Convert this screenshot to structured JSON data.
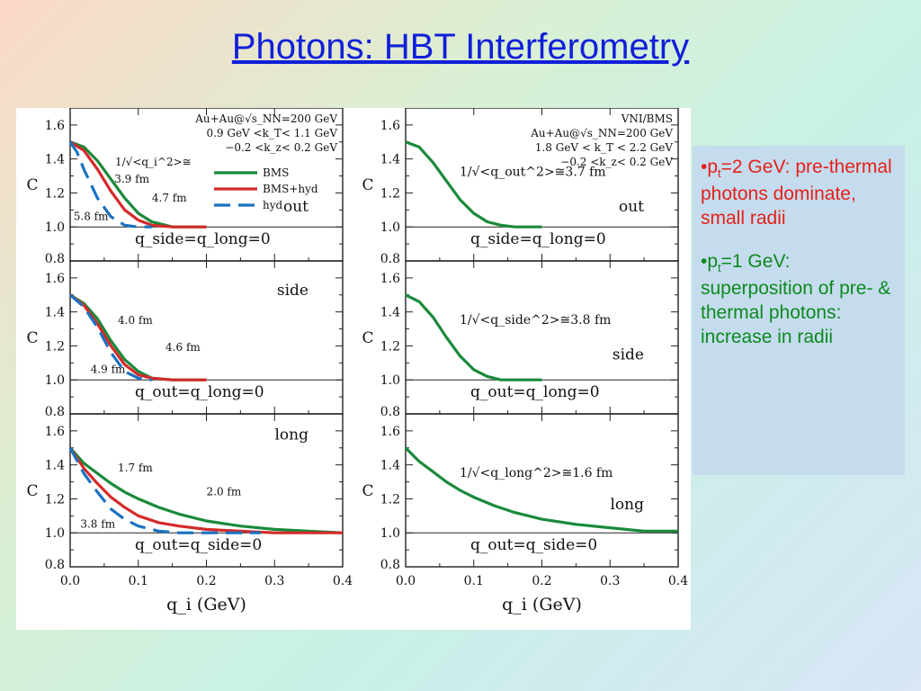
{
  "title": "Photons: HBT Interferometry",
  "notes": [
    {
      "prefix": "•p",
      "sub": "t",
      "text": "=2 GeV: pre-thermal photons dominate, small radii",
      "color": "#e62018"
    },
    {
      "prefix": "•p",
      "sub": "t",
      "text": "=1 GeV: superposition of pre- & thermal photons: increase in radii",
      "color": "#0c8a1e"
    }
  ],
  "colors": {
    "BMS": "#1a8a3a",
    "BMS+hyd": "#d42a2a",
    "hyd": "#1a72c0"
  },
  "chart_data": [
    {
      "type": "line",
      "column": "left",
      "row": "out",
      "xlabel": "q_i (GeV)",
      "ylabel": "C",
      "xlim": [
        0,
        0.4
      ],
      "ylim": [
        0.8,
        1.7
      ],
      "xticks": [
        "0.0",
        "0.1",
        "0.2",
        "0.3",
        "0.4"
      ],
      "yticks": [
        "0.8",
        "1.0",
        "1.2",
        "1.4",
        "1.6"
      ],
      "info": [
        "Au+Au@√s_NN=200 GeV",
        "0.9 GeV <k_T< 1.1 GeV",
        "−0.2 <k_z< 0.2 GeV"
      ],
      "label": "out",
      "condition": "q_side=q_long=0",
      "annotation": "1/√<q_i^2>≅",
      "radii": [
        "3.9 fm",
        "4.7 fm",
        "5.8 fm"
      ],
      "legend": [
        "BMS",
        "BMS+hyd",
        "hyd"
      ],
      "series": [
        {
          "name": "BMS",
          "x": [
            0,
            0.02,
            0.04,
            0.06,
            0.08,
            0.1,
            0.12,
            0.15,
            0.2
          ],
          "y": [
            1.5,
            1.47,
            1.39,
            1.28,
            1.17,
            1.08,
            1.03,
            1.0,
            1.0
          ]
        },
        {
          "name": "BMS+hyd",
          "x": [
            0,
            0.02,
            0.04,
            0.06,
            0.08,
            0.1,
            0.12,
            0.15,
            0.2
          ],
          "y": [
            1.5,
            1.45,
            1.34,
            1.21,
            1.1,
            1.04,
            1.01,
            1.0,
            1.0
          ]
        },
        {
          "name": "hyd",
          "x": [
            0,
            0.01,
            0.02,
            0.04,
            0.06,
            0.08,
            0.1,
            0.12
          ],
          "y": [
            1.5,
            1.44,
            1.34,
            1.17,
            1.06,
            1.01,
            1.0,
            1.0
          ]
        }
      ]
    },
    {
      "type": "line",
      "column": "left",
      "row": "side",
      "xlabel": "q_i (GeV)",
      "ylabel": "C",
      "xlim": [
        0,
        0.4
      ],
      "ylim": [
        0.8,
        1.7
      ],
      "xticks": [
        "0.0",
        "0.1",
        "0.2",
        "0.3",
        "0.4"
      ],
      "yticks": [
        "0.8",
        "1.0",
        "1.2",
        "1.4",
        "1.6"
      ],
      "label": "side",
      "condition": "q_out=q_long=0",
      "radii": [
        "4.0 fm",
        "4.6 fm",
        "4.9 fm"
      ],
      "series": [
        {
          "name": "BMS",
          "x": [
            0,
            0.02,
            0.04,
            0.06,
            0.08,
            0.1,
            0.12,
            0.15,
            0.2
          ],
          "y": [
            1.5,
            1.45,
            1.36,
            1.23,
            1.12,
            1.05,
            1.01,
            1.0,
            1.0
          ]
        },
        {
          "name": "BMS+hyd",
          "x": [
            0,
            0.02,
            0.04,
            0.06,
            0.08,
            0.1,
            0.12,
            0.15,
            0.2
          ],
          "y": [
            1.5,
            1.44,
            1.33,
            1.2,
            1.09,
            1.03,
            1.01,
            1.0,
            1.0
          ]
        },
        {
          "name": "hyd",
          "x": [
            0,
            0.02,
            0.04,
            0.06,
            0.08,
            0.1,
            0.12
          ],
          "y": [
            1.5,
            1.43,
            1.31,
            1.16,
            1.05,
            1.01,
            1.0
          ]
        }
      ]
    },
    {
      "type": "line",
      "column": "left",
      "row": "long",
      "xlabel": "q_i (GeV)",
      "ylabel": "C",
      "xlim": [
        0,
        0.4
      ],
      "ylim": [
        0.8,
        1.7
      ],
      "xticks": [
        "0.0",
        "0.1",
        "0.2",
        "0.3",
        "0.4"
      ],
      "yticks": [
        "0.8",
        "1.0",
        "1.2",
        "1.4",
        "1.6"
      ],
      "label": "long",
      "condition": "q_out=q_side=0",
      "radii": [
        "1.7 fm",
        "2.0 fm",
        "3.8 fm"
      ],
      "series": [
        {
          "name": "BMS",
          "x": [
            0,
            0.02,
            0.04,
            0.06,
            0.08,
            0.1,
            0.13,
            0.16,
            0.2,
            0.25,
            0.3,
            0.35,
            0.4
          ],
          "y": [
            1.5,
            1.41,
            1.35,
            1.29,
            1.24,
            1.2,
            1.15,
            1.11,
            1.07,
            1.04,
            1.02,
            1.01,
            1.0
          ]
        },
        {
          "name": "BMS+hyd",
          "x": [
            0,
            0.02,
            0.04,
            0.06,
            0.08,
            0.1,
            0.13,
            0.16,
            0.2,
            0.25,
            0.3,
            0.4
          ],
          "y": [
            1.5,
            1.38,
            1.29,
            1.21,
            1.15,
            1.1,
            1.06,
            1.04,
            1.02,
            1.01,
            1.0,
            1.0
          ]
        },
        {
          "name": "hyd",
          "x": [
            0,
            0.02,
            0.04,
            0.06,
            0.08,
            0.1,
            0.13,
            0.16,
            0.2,
            0.28
          ],
          "y": [
            1.5,
            1.35,
            1.24,
            1.14,
            1.08,
            1.04,
            1.01,
            1.0,
            1.0,
            1.0
          ]
        }
      ]
    },
    {
      "type": "line",
      "column": "right",
      "row": "out",
      "xlabel": "q_i (GeV)",
      "ylabel": "C",
      "xlim": [
        0,
        0.4
      ],
      "ylim": [
        0.8,
        1.7
      ],
      "xticks": [
        "0.0",
        "0.1",
        "0.2",
        "0.3",
        "0.4"
      ],
      "yticks": [
        "0.8",
        "1.0",
        "1.2",
        "1.4",
        "1.6"
      ],
      "info": [
        "VNI/BMS",
        "Au+Au@√s_NN=200 GeV",
        "1.8 GeV < k_T < 2.2 GeV",
        "−0.2 <k_z< 0.2 GeV"
      ],
      "label": "out",
      "condition": "q_side=q_long=0",
      "annotation": "1/√<q_out^2>≅3.7 fm",
      "series": [
        {
          "name": "BMS",
          "x": [
            0,
            0.02,
            0.04,
            0.06,
            0.08,
            0.1,
            0.12,
            0.14,
            0.16,
            0.2
          ],
          "y": [
            1.5,
            1.47,
            1.38,
            1.27,
            1.16,
            1.08,
            1.03,
            1.01,
            1.0,
            1.0
          ]
        }
      ]
    },
    {
      "type": "line",
      "column": "right",
      "row": "side",
      "xlabel": "q_i (GeV)",
      "ylabel": "C",
      "xlim": [
        0,
        0.4
      ],
      "ylim": [
        0.8,
        1.7
      ],
      "xticks": [
        "0.0",
        "0.1",
        "0.2",
        "0.3",
        "0.4"
      ],
      "yticks": [
        "0.8",
        "1.0",
        "1.2",
        "1.4",
        "1.6"
      ],
      "label": "side",
      "condition": "q_out=q_long=0",
      "annotation": "1/√<q_side^2>≅3.8 fm",
      "series": [
        {
          "name": "BMS",
          "x": [
            0,
            0.02,
            0.04,
            0.06,
            0.08,
            0.1,
            0.12,
            0.14,
            0.16,
            0.2
          ],
          "y": [
            1.5,
            1.46,
            1.37,
            1.25,
            1.14,
            1.06,
            1.02,
            1.0,
            1.0,
            1.0
          ]
        }
      ]
    },
    {
      "type": "line",
      "column": "right",
      "row": "long",
      "xlabel": "q_i (GeV)",
      "ylabel": "C",
      "xlim": [
        0,
        0.4
      ],
      "ylim": [
        0.8,
        1.7
      ],
      "xticks": [
        "0.0",
        "0.1",
        "0.2",
        "0.3",
        "0.4"
      ],
      "yticks": [
        "0.8",
        "1.0",
        "1.2",
        "1.4",
        "1.6"
      ],
      "label": "long",
      "condition": "q_out=q_side=0",
      "annotation": "1/√<q_long^2>≅1.6 fm",
      "series": [
        {
          "name": "BMS",
          "x": [
            0,
            0.02,
            0.04,
            0.06,
            0.08,
            0.1,
            0.13,
            0.16,
            0.2,
            0.25,
            0.3,
            0.35,
            0.4
          ],
          "y": [
            1.5,
            1.42,
            1.36,
            1.3,
            1.25,
            1.21,
            1.16,
            1.12,
            1.08,
            1.05,
            1.03,
            1.01,
            1.01
          ]
        }
      ]
    }
  ]
}
